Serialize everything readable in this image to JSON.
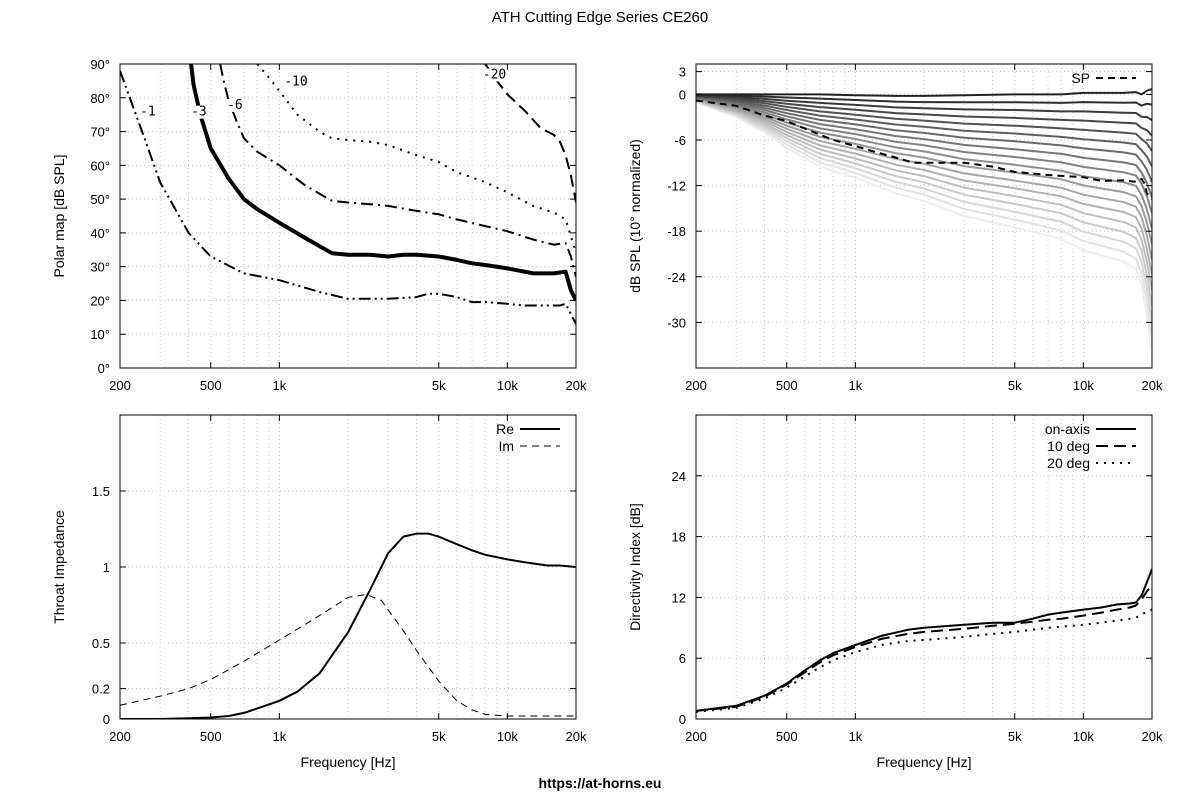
{
  "page": {
    "title": "ATH Cutting Edge Series CE260",
    "footer_url": "https://at-horns.eu"
  },
  "chart_data": [
    {
      "id": "polar",
      "type": "line",
      "title": "",
      "xlabel": "",
      "ylabel": "Polar map [dB SPL]",
      "x_scale": "log",
      "xlim": [
        200,
        20000
      ],
      "ylim": [
        0,
        90
      ],
      "x_ticks": [
        200,
        500,
        1000,
        5000,
        10000,
        20000
      ],
      "x_tick_labels": [
        "200",
        "500",
        "1k",
        "5k",
        "10k",
        "20k"
      ],
      "y_ticks": [
        0,
        10,
        20,
        30,
        40,
        50,
        60,
        70,
        80,
        90
      ],
      "y_tick_labels": [
        "0°",
        "10°",
        "20°",
        "30°",
        "40°",
        "50°",
        "60°",
        "70°",
        "80°",
        "90°"
      ],
      "grid": true,
      "series": [
        {
          "name": "-1",
          "style": "dash-dot-dot",
          "width": 2,
          "x": [
            200,
            250,
            300,
            400,
            500,
            700,
            1000,
            1500,
            2000,
            3000,
            4000,
            4500,
            5000,
            6000,
            7000,
            8000,
            10000,
            12000,
            15000,
            17000,
            18000,
            19000,
            20000
          ],
          "y": [
            88,
            70,
            55,
            40,
            33,
            28,
            26,
            22.5,
            20.5,
            20.5,
            21,
            22,
            22,
            21,
            19.5,
            19.5,
            19,
            18.5,
            18.5,
            18.5,
            19,
            16,
            13
          ]
        },
        {
          "name": "-3",
          "style": "solid",
          "width": 4,
          "x": [
            410,
            420,
            450,
            500,
            600,
            700,
            800,
            1000,
            1300,
            1700,
            2000,
            2500,
            3000,
            3500,
            4000,
            5000,
            6000,
            7000,
            8000,
            10000,
            13000,
            16000,
            18000,
            19000,
            20000
          ],
          "y": [
            90,
            84,
            75,
            65,
            56,
            50,
            47,
            43,
            38.5,
            34,
            33.5,
            33.5,
            33,
            33.5,
            33.5,
            33,
            32,
            31,
            30.5,
            29.5,
            28,
            28,
            28.5,
            23,
            20
          ]
        },
        {
          "name": "-6",
          "style": "dash-dot",
          "width": 2,
          "x": [
            550,
            570,
            600,
            650,
            700,
            800,
            1000,
            1300,
            1700,
            2000,
            2500,
            3000,
            4000,
            5000,
            6000,
            8000,
            10000,
            13000,
            16000,
            18000,
            19000,
            20000
          ],
          "y": [
            90,
            85,
            79,
            73,
            68,
            64,
            60,
            54,
            49.5,
            49,
            48.5,
            48,
            46.5,
            45.5,
            44,
            42,
            40.5,
            38,
            36.5,
            37,
            33,
            27
          ]
        },
        {
          "name": "-10",
          "style": "dotted",
          "width": 2,
          "x": [
            800,
            900,
            1000,
            1200,
            1500,
            1700,
            2000,
            2500,
            3000,
            4000,
            5000,
            6000,
            8000,
            10000,
            13000,
            16000,
            18000,
            19000,
            20000
          ],
          "y": [
            90,
            86,
            82,
            75,
            70,
            68,
            67.5,
            67,
            66,
            63,
            61,
            58,
            55,
            52,
            48,
            46,
            44,
            39,
            34
          ]
        },
        {
          "name": "-20",
          "style": "long-dash",
          "width": 2,
          "x": [
            8000,
            9000,
            10000,
            12000,
            14000,
            15000,
            16000,
            17000,
            18000,
            19000,
            20000
          ],
          "y": [
            90,
            85,
            81,
            76,
            71,
            70,
            69,
            67,
            63,
            57,
            49
          ]
        }
      ],
      "contour_labels": [
        {
          "text": "-1",
          "x": 245,
          "y": 75
        },
        {
          "text": "-3",
          "x": 410,
          "y": 75
        },
        {
          "text": "-6",
          "x": 590,
          "y": 77
        },
        {
          "text": "-10",
          "x": 1050,
          "y": 84
        },
        {
          "text": "-20",
          "x": 7800,
          "y": 86
        }
      ]
    },
    {
      "id": "spl",
      "type": "line",
      "title": "",
      "xlabel": "",
      "ylabel": "dB SPL (10° normalized)",
      "x_scale": "log",
      "xlim": [
        200,
        20000
      ],
      "ylim": [
        -36,
        4
      ],
      "x_ticks": [
        200,
        500,
        1000,
        5000,
        10000,
        20000
      ],
      "x_tick_labels": [
        "200",
        "500",
        "1k",
        "5k",
        "10k",
        "20k"
      ],
      "y_ticks": [
        3,
        0,
        -6,
        -12,
        -18,
        -24,
        -30
      ],
      "y_tick_labels": [
        "3",
        "0",
        "-6",
        "-12",
        "-18",
        "-24",
        "-30"
      ],
      "grid": true,
      "legend": {
        "position": "top-right",
        "entries": [
          "SP"
        ]
      },
      "fan_curves": {
        "count": 18,
        "color_dark": "#222222",
        "color_light": "#eeeeee",
        "x": [
          200,
          300,
          400,
          500,
          700,
          1000,
          1500,
          2000,
          3000,
          5000,
          8000,
          10000,
          15000,
          17000,
          18000,
          19000,
          20000
        ],
        "top_shape": [
          0,
          0,
          0,
          0,
          0,
          -0.1,
          -0.2,
          -0.2,
          -0.1,
          0,
          0,
          0.2,
          0.2,
          0.3,
          0,
          0.5,
          0.7
        ],
        "bottom_shape": [
          -1,
          -3,
          -5,
          -7,
          -9.5,
          -11,
          -13,
          -14,
          -16,
          -17.5,
          -19,
          -20.5,
          -22,
          -23,
          -25,
          -29,
          -34
        ]
      },
      "series": [
        {
          "name": "SP",
          "style": "dashed",
          "width": 2,
          "x": [
            200,
            300,
            400,
            500,
            600,
            700,
            800,
            1000,
            1200,
            1500,
            1800,
            2000,
            3000,
            4000,
            5000,
            7000,
            10000,
            12000,
            15000,
            17000,
            18000,
            18500,
            19000,
            20000
          ],
          "y": [
            -0.8,
            -1.5,
            -2.8,
            -3.5,
            -4.5,
            -5.3,
            -6,
            -6.8,
            -7.5,
            -8.3,
            -9,
            -9,
            -9,
            -9.5,
            -10.2,
            -10.6,
            -10.9,
            -11.4,
            -11.3,
            -11.5,
            -11.1,
            -11.7,
            -13,
            -13.8
          ]
        }
      ]
    },
    {
      "id": "impedance",
      "type": "line",
      "title": "",
      "xlabel": "Frequency [Hz]",
      "ylabel": "Throat Impedance",
      "x_scale": "log",
      "xlim": [
        200,
        20000
      ],
      "ylim": [
        0,
        2
      ],
      "x_ticks": [
        200,
        500,
        1000,
        5000,
        10000,
        20000
      ],
      "x_tick_labels": [
        "200",
        "500",
        "1k",
        "5k",
        "10k",
        "20k"
      ],
      "y_ticks": [
        0,
        0.2,
        0.5,
        1,
        1.5
      ],
      "y_tick_labels": [
        "0",
        "0.2",
        "0.5",
        "1",
        "1.5"
      ],
      "grid": true,
      "legend": {
        "position": "top-right",
        "entries": [
          "Re",
          "Im"
        ]
      },
      "series": [
        {
          "name": "Re",
          "style": "solid",
          "width": 2,
          "x": [
            200,
            300,
            400,
            500,
            600,
            700,
            800,
            1000,
            1200,
            1500,
            2000,
            2500,
            3000,
            3500,
            4000,
            4500,
            5000,
            6000,
            7000,
            8000,
            10000,
            12000,
            15000,
            17000,
            20000
          ],
          "y": [
            0,
            0,
            0.005,
            0.01,
            0.02,
            0.04,
            0.07,
            0.12,
            0.18,
            0.3,
            0.57,
            0.85,
            1.09,
            1.2,
            1.22,
            1.22,
            1.2,
            1.15,
            1.11,
            1.08,
            1.05,
            1.03,
            1.01,
            1.01,
            1
          ]
        },
        {
          "name": "Im",
          "style": "dashed",
          "width": 1,
          "x": [
            200,
            300,
            400,
            500,
            700,
            1000,
            1500,
            2000,
            2400,
            2800,
            3500,
            4000,
            5000,
            6000,
            7000,
            8000,
            10000,
            15000,
            20000
          ],
          "y": [
            0.09,
            0.15,
            0.2,
            0.26,
            0.38,
            0.52,
            0.68,
            0.8,
            0.82,
            0.78,
            0.58,
            0.45,
            0.25,
            0.12,
            0.06,
            0.03,
            0.02,
            0.02,
            0.02
          ]
        }
      ]
    },
    {
      "id": "di",
      "type": "line",
      "title": "",
      "xlabel": "Frequency [Hz]",
      "ylabel": "Directivity Index [dB]",
      "x_scale": "log",
      "xlim": [
        200,
        20000
      ],
      "ylim": [
        0,
        30
      ],
      "x_ticks": [
        200,
        500,
        1000,
        5000,
        10000,
        20000
      ],
      "x_tick_labels": [
        "200",
        "500",
        "1k",
        "5k",
        "10k",
        "20k"
      ],
      "y_ticks": [
        0,
        6,
        12,
        18,
        24
      ],
      "y_tick_labels": [
        "0",
        "6",
        "12",
        "18",
        "24"
      ],
      "grid": true,
      "legend": {
        "position": "top-right",
        "entries": [
          "on-axis",
          "10 deg",
          "20 deg"
        ]
      },
      "series": [
        {
          "name": "on-axis",
          "style": "solid",
          "width": 2,
          "x": [
            200,
            300,
            400,
            500,
            600,
            700,
            800,
            1000,
            1300,
            1700,
            2000,
            3000,
            4000,
            5000,
            6000,
            7000,
            8000,
            10000,
            12000,
            14000,
            16000,
            17000,
            18000,
            19000,
            20000
          ],
          "y": [
            0.8,
            1.3,
            2.3,
            3.5,
            4.8,
            5.8,
            6.5,
            7.3,
            8.2,
            8.8,
            9,
            9.3,
            9.5,
            9.5,
            9.9,
            10.3,
            10.5,
            10.8,
            11,
            11.3,
            11.4,
            11.5,
            12.2,
            13.5,
            14.8
          ]
        },
        {
          "name": "10 deg",
          "style": "long-dash",
          "width": 2,
          "x": [
            200,
            300,
            400,
            500,
            600,
            700,
            800,
            1000,
            1300,
            1700,
            2000,
            3000,
            4000,
            5000,
            6000,
            7000,
            8000,
            10000,
            12000,
            14000,
            16000,
            17000,
            18000,
            19000,
            20000
          ],
          "y": [
            0.8,
            1.2,
            2.2,
            3.4,
            4.6,
            5.6,
            6.3,
            7.1,
            7.9,
            8.4,
            8.6,
            8.9,
            9.2,
            9.4,
            9.6,
            9.8,
            9.9,
            10.2,
            10.5,
            10.8,
            11,
            11.2,
            11.8,
            12.6,
            13.3
          ]
        },
        {
          "name": "20 deg",
          "style": "dotted",
          "width": 2,
          "x": [
            200,
            300,
            400,
            500,
            600,
            700,
            800,
            1000,
            1300,
            1700,
            2000,
            3000,
            4000,
            5000,
            7000,
            10000,
            12000,
            15000,
            17000,
            18000,
            19000,
            20000
          ],
          "y": [
            0.7,
            1.1,
            2,
            3.1,
            4.2,
            5.1,
            5.8,
            6.6,
            7.3,
            7.7,
            7.8,
            8.1,
            8.4,
            8.6,
            9,
            9.3,
            9.5,
            9.8,
            10,
            10.3,
            10.6,
            10.8
          ]
        }
      ]
    }
  ]
}
